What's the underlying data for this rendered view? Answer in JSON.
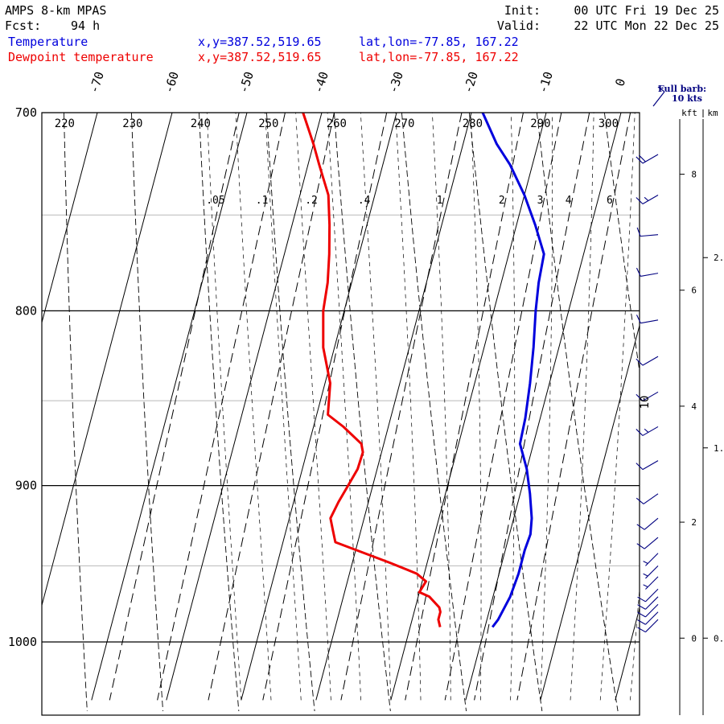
{
  "header": {
    "model": "AMPS 8-km MPAS",
    "fcst_label": "Fcst:",
    "fcst_value": "94 h",
    "init_label": "Init:",
    "init_value": "00 UTC Fri 19 Dec 25",
    "valid_label": "Valid:",
    "valid_value": "22 UTC Mon 22 Dec 25"
  },
  "legend": [
    {
      "name": "Temperature",
      "color": "#0000dd",
      "xy": "x,y=387.52,519.65",
      "latlon": "lat,lon=-77.85, 167.22"
    },
    {
      "name": "Dewpoint temperature",
      "color": "#ee0000",
      "xy": "x,y=387.52,519.65",
      "latlon": "lat,lon=-77.85, 167.22"
    }
  ],
  "barb_legend": {
    "line1": "Full barb:",
    "line2": "10 kts",
    "color": "#000080"
  },
  "height_axes": {
    "kft_label": "kft",
    "km_label": "km",
    "kft_ticks": [
      0,
      2,
      4,
      6,
      8
    ],
    "km_ticks": [
      "0.",
      "1.",
      "2."
    ]
  },
  "chart_data": {
    "type": "line",
    "chart_kind": "skew-T log-p diagram",
    "y_axis": {
      "quantity": "pressure (hPa)",
      "scale": "log",
      "range": [
        1040,
        700
      ],
      "labeled_ticks": [
        700,
        800,
        900,
        1000
      ],
      "grid_lines": [
        700,
        750,
        800,
        850,
        900,
        950,
        1000
      ]
    },
    "isotherm_labels_C": [
      -70,
      -60,
      -50,
      -40,
      -30,
      -20,
      -10,
      0
    ],
    "dry_adiabat_labels_K": [
      220,
      230,
      240,
      250,
      260,
      270,
      280,
      290,
      300
    ],
    "mixing_ratio_labels": [
      ".05",
      ".1",
      ".2",
      ".4",
      "1",
      "2",
      "3",
      "4",
      "6"
    ],
    "wind_barb_annotation": "10",
    "series": [
      {
        "name": "Temperature",
        "color": "#0000dd",
        "points": [
          [
            1.0,
            990
          ],
          [
            1.5,
            985
          ],
          [
            2.3,
            970
          ],
          [
            2.6,
            955
          ],
          [
            2.6,
            940
          ],
          [
            2.8,
            930
          ],
          [
            2.4,
            920
          ],
          [
            1.3,
            905
          ],
          [
            0.0,
            890
          ],
          [
            -1.8,
            875
          ],
          [
            -2.0,
            860
          ],
          [
            -2.6,
            840
          ],
          [
            -3.4,
            820
          ],
          [
            -4.4,
            800
          ],
          [
            -5.0,
            785
          ],
          [
            -5.3,
            770
          ],
          [
            -7.5,
            755
          ],
          [
            -10.0,
            740
          ],
          [
            -13.0,
            725
          ],
          [
            -15.5,
            715
          ],
          [
            -18.5,
            700
          ]
        ]
      },
      {
        "name": "Dewpoint temperature",
        "color": "#ee0000",
        "points": [
          [
            -6.0,
            990
          ],
          [
            -6.5,
            985
          ],
          [
            -6.5,
            980
          ],
          [
            -6.8,
            977
          ],
          [
            -8.5,
            970
          ],
          [
            -10.0,
            967
          ],
          [
            -9.5,
            960
          ],
          [
            -11.0,
            955
          ],
          [
            -15.0,
            948
          ],
          [
            -23.0,
            935
          ],
          [
            -23.8,
            927
          ],
          [
            -24.5,
            920
          ],
          [
            -24.0,
            910
          ],
          [
            -23.3,
            900
          ],
          [
            -22.6,
            890
          ],
          [
            -22.5,
            880
          ],
          [
            -23.0,
            875
          ],
          [
            -26.0,
            865
          ],
          [
            -28.5,
            858
          ],
          [
            -29.3,
            840
          ],
          [
            -31.5,
            820
          ],
          [
            -32.8,
            800
          ],
          [
            -33.2,
            785
          ],
          [
            -34.0,
            770
          ],
          [
            -35.0,
            755
          ],
          [
            -36.2,
            740
          ],
          [
            -38.5,
            725
          ],
          [
            -40.0,
            715
          ],
          [
            -42.5,
            700
          ]
        ]
      }
    ],
    "wind_barbs_kts": [
      {
        "p": 985,
        "speed": 10,
        "dir": 225
      },
      {
        "p": 980,
        "speed": 10,
        "dir": 225
      },
      {
        "p": 975,
        "speed": 10,
        "dir": 225
      },
      {
        "p": 970,
        "speed": 10,
        "dir": 225
      },
      {
        "p": 965,
        "speed": 10,
        "dir": 225
      },
      {
        "p": 957,
        "speed": 5,
        "dir": 225
      },
      {
        "p": 950,
        "speed": 5,
        "dir": 225
      },
      {
        "p": 942,
        "speed": 5,
        "dir": 225
      },
      {
        "p": 932,
        "speed": 10,
        "dir": 230
      },
      {
        "p": 920,
        "speed": 10,
        "dir": 230
      },
      {
        "p": 905,
        "speed": 10,
        "dir": 235
      },
      {
        "p": 885,
        "speed": 10,
        "dir": 240
      },
      {
        "p": 865,
        "speed": 15,
        "dir": 240
      },
      {
        "p": 845,
        "speed": 10,
        "dir": 240
      },
      {
        "p": 825,
        "speed": 10,
        "dir": 240
      },
      {
        "p": 805,
        "speed": 10,
        "dir": 260
      },
      {
        "p": 780,
        "speed": 10,
        "dir": 260
      },
      {
        "p": 760,
        "speed": 10,
        "dir": 265
      },
      {
        "p": 740,
        "speed": 15,
        "dir": 240
      },
      {
        "p": 720,
        "speed": 20,
        "dir": 240
      }
    ]
  }
}
